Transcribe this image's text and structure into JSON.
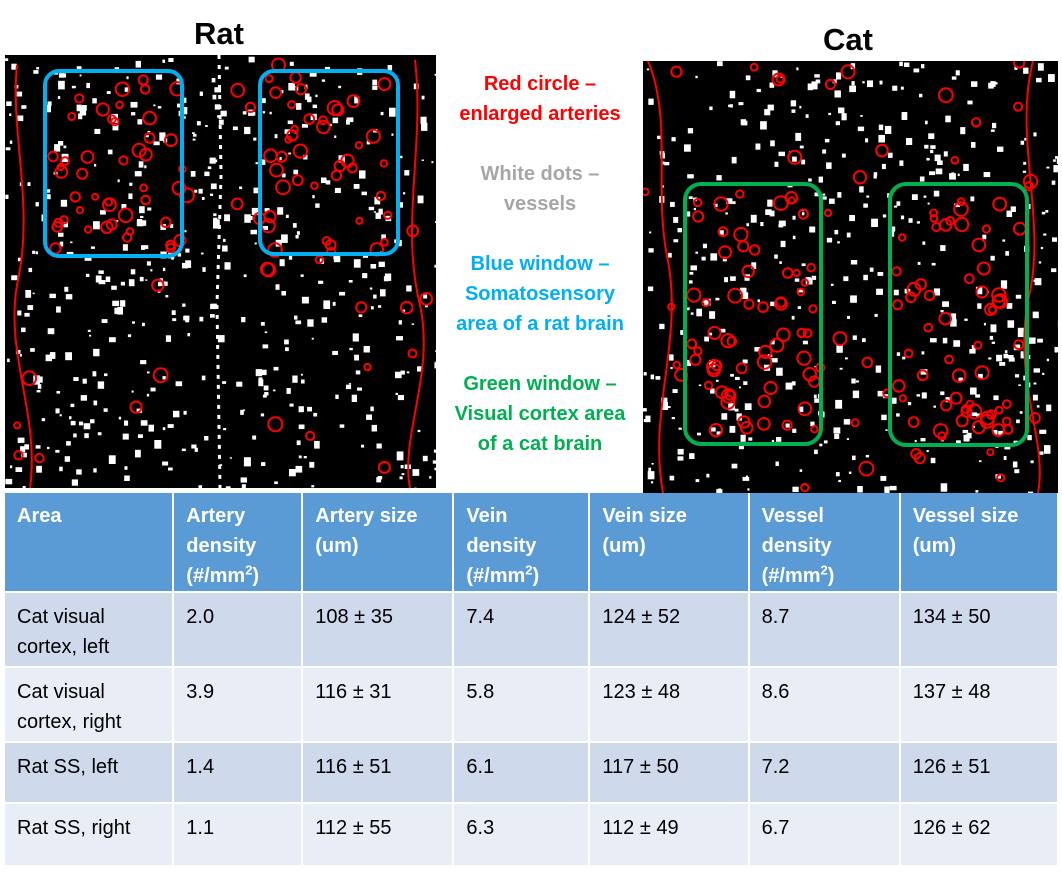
{
  "headings": {
    "rat": "Rat",
    "cat": "Cat"
  },
  "legend": {
    "red": [
      "Red circle –",
      "enlarged arteries"
    ],
    "white": [
      "White dots –",
      "vessels"
    ],
    "blue": [
      "Blue window –",
      "Somatosensory",
      "area of a rat brain"
    ],
    "green": [
      "Green window –",
      "Visual cortex area",
      "of a cat brain"
    ]
  },
  "colors": {
    "red": "#ff0000",
    "white_text": "#a6a6a6",
    "blue": "#00b0f0",
    "green": "#00b050",
    "table_header": "#5b9bd5",
    "row_dark": "#cfd9ec",
    "row_light": "#e9edf5"
  },
  "table": {
    "headers": [
      {
        "lines": [
          "Area"
        ]
      },
      {
        "lines": [
          "Artery",
          "density",
          "(#/mm"
        ],
        "sup": "2",
        "tail": ")"
      },
      {
        "lines": [
          "Artery size",
          "(um)"
        ]
      },
      {
        "lines": [
          "Vein",
          "density",
          "(#/mm"
        ],
        "sup": "2",
        "tail": ")"
      },
      {
        "lines": [
          "Vein size",
          "(um)"
        ]
      },
      {
        "lines": [
          "Vessel",
          "density",
          "(#/mm"
        ],
        "sup": "2",
        "tail": ")"
      },
      {
        "lines": [
          "Vessel size",
          "(um)"
        ]
      }
    ],
    "rows": [
      {
        "area": [
          "Cat visual",
          "cortex, left"
        ],
        "artery_density": "2.0",
        "artery_size": "108 ± 35",
        "vein_density": "7.4",
        "vein_size": "124 ± 52",
        "vessel_density": "8.7",
        "vessel_size": "134 ± 50"
      },
      {
        "area": [
          "Cat visual",
          "cortex, right"
        ],
        "artery_density": "3.9",
        "artery_size": "116 ± 31",
        "vein_density": "5.8",
        "vein_size": "123 ± 48",
        "vessel_density": "8.6",
        "vessel_size": "137 ± 48"
      },
      {
        "area": [
          "Rat SS, left"
        ],
        "artery_density": "1.4",
        "artery_size": "116 ± 51",
        "vein_density": "6.1",
        "vein_size": "117 ± 50",
        "vessel_density": "7.2",
        "vessel_size": "126 ± 51"
      },
      {
        "area": [
          "Rat SS, right"
        ],
        "artery_density": "1.1",
        "artery_size": "112 ± 55",
        "vein_density": "6.3",
        "vein_size": "112 ± 49",
        "vessel_density": "6.7",
        "vessel_size": "126 ± 62"
      }
    ]
  }
}
